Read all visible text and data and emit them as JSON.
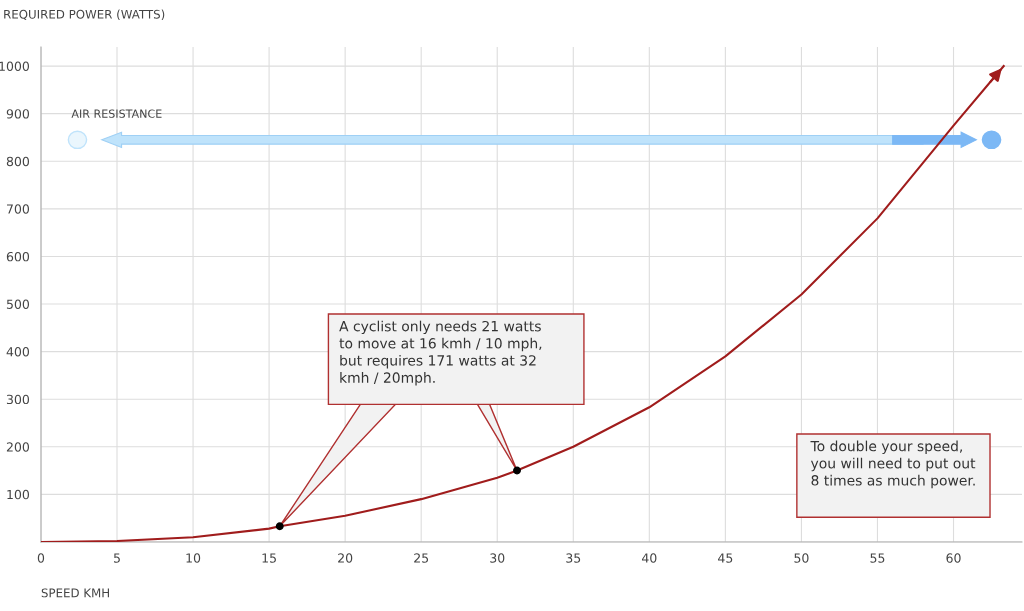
{
  "chart_data": {
    "type": "line",
    "xlabel": "SPEED KMH",
    "ylabel": "REQUIRED POWER (WATTS)",
    "x": [
      0,
      5,
      10,
      15,
      15.7,
      20,
      25,
      30,
      31.3,
      35,
      40,
      45,
      50,
      55,
      60,
      63.3
    ],
    "series": [
      {
        "color": "#a01c1c",
        "marker": "none",
        "values": [
          0,
          2,
          10,
          28,
          33,
          55,
          90,
          135,
          150,
          200,
          283,
          390,
          520,
          680,
          875,
          1000
        ]
      },
      {
        "type": "scatter",
        "color": "#000000",
        "marker": "circle",
        "x": [
          15.7,
          31.3
        ],
        "values": [
          33,
          150
        ]
      }
    ],
    "xlim": [
      0,
      64.5
    ],
    "ylim": [
      0,
      1040
    ],
    "xticks": [
      0,
      5,
      10,
      15,
      20,
      25,
      30,
      35,
      40,
      45,
      50,
      55,
      60
    ],
    "yticks": [
      {
        "value": 0,
        "label": null
      },
      100,
      200,
      300,
      400,
      500,
      600,
      700,
      800,
      900,
      1000
    ],
    "grid": true,
    "legend": false,
    "annotations": [
      "A cyclist only needs 21 watts to move at 16 kmh / 10 mph, but requires 171 watts at 32 kmh / 20mph.",
      "To double your speed, you will need to put out 8 times as much power.",
      "AIR RESISTANCE"
    ]
  }
}
